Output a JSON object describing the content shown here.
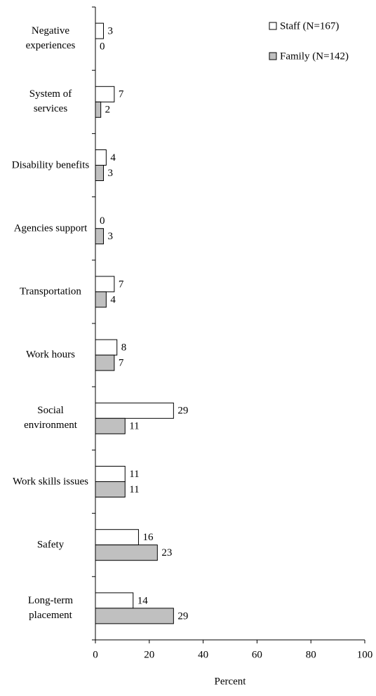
{
  "chart_data": {
    "type": "bar",
    "orientation": "horizontal",
    "x_label": "Percent",
    "categories": [
      "Negative experiences",
      "System of services",
      "Disability benefits",
      "Agencies support",
      "Transportation",
      "Work hours",
      "Social environment",
      "Work skills issues",
      "Safety",
      "Long-term placement"
    ],
    "series": [
      {
        "name": "Staff (N=167)",
        "color": "#ffffff",
        "values": [
          3,
          7,
          4,
          0,
          7,
          8,
          29,
          11,
          16,
          14
        ]
      },
      {
        "name": "Family (N=142)",
        "color": "#c0c0c0",
        "values": [
          0,
          2,
          3,
          3,
          4,
          7,
          11,
          11,
          23,
          29
        ]
      }
    ],
    "xlim": [
      0,
      100
    ],
    "xticks": [
      0,
      20,
      40,
      60,
      80,
      100
    ],
    "legend": "top-right"
  }
}
